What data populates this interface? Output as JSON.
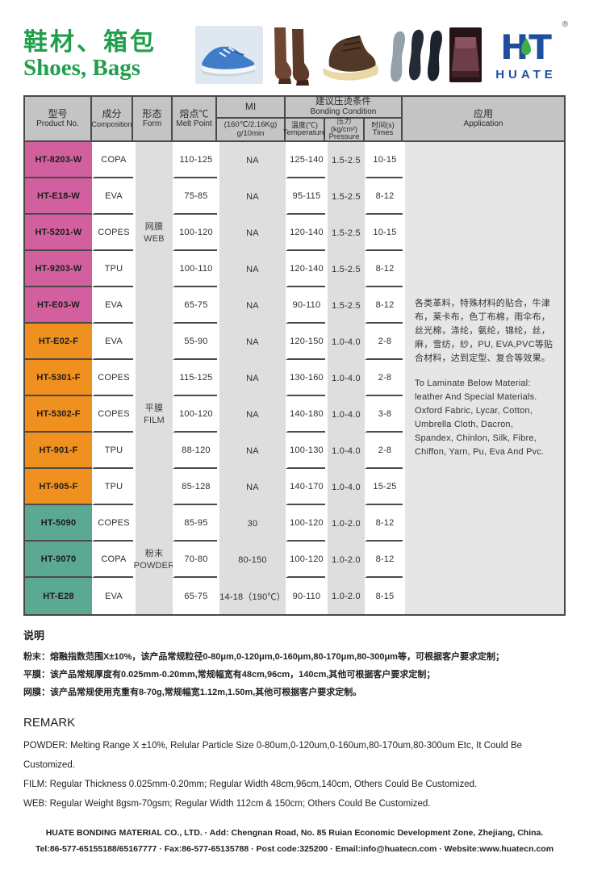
{
  "header": {
    "title_cn": "鞋材、箱包",
    "title_en": "Shoes, Bags",
    "photos": [
      "sneaker-photo",
      "tall-boots-photo",
      "ankle-boot-photo",
      "insoles-photo",
      "bag-photo"
    ],
    "logo": {
      "monogram": "HT",
      "registered": "®",
      "name": "HUATE"
    }
  },
  "colors": {
    "title_green": "#1f9f4a",
    "logo_blue": "#1d4f9e",
    "group_pink": "#d2609e",
    "group_orange": "#f0901e",
    "group_teal": "#5ba893",
    "header_gray": "#c4c4c4",
    "stripe_gray": "#dedede"
  },
  "table": {
    "header": {
      "product_cn": "型号",
      "product_en": "Product No.",
      "composition_cn": "成分",
      "composition_en": "Composition",
      "form_cn": "形态",
      "form_en": "Form",
      "melt_cn": "熔点℃",
      "melt_en": "Melt Point",
      "mi_title": "MI",
      "mi_sub1": "(160℃/2.16Kg)",
      "mi_sub2": "g/10min",
      "bonding_cn": "建议压烫条件",
      "bonding_en": "Bonding Condition",
      "temp_cn": "温度(℃)",
      "temp_en": "Temperature",
      "pressure_cn": "压力(kg/cm²)",
      "pressure_en": "Pressure",
      "times_cn": "时间(s)",
      "times_en": "Times",
      "app_cn": "应用",
      "app_en": "Application"
    },
    "groups": [
      {
        "form_cn": "网膜",
        "form_en": "WEB",
        "color": "#d2609e"
      },
      {
        "form_cn": "平膜",
        "form_en": "FILM",
        "color": "#f0901e"
      },
      {
        "form_cn": "粉末",
        "form_en": "POWDER",
        "color": "#5ba893"
      }
    ],
    "rows": [
      {
        "group": 0,
        "product": "HT-8203-W",
        "composition": "COPA",
        "melt": "110-125",
        "mi": "NA",
        "temp": "125-140",
        "pressure": "1.5-2.5",
        "times": "10-15"
      },
      {
        "group": 0,
        "product": "HT-E18-W",
        "composition": "EVA",
        "melt": "75-85",
        "mi": "NA",
        "temp": "95-115",
        "pressure": "1.5-2.5",
        "times": "8-12"
      },
      {
        "group": 0,
        "product": "HT-5201-W",
        "composition": "COPES",
        "melt": "100-120",
        "mi": "NA",
        "temp": "120-140",
        "pressure": "1.5-2.5",
        "times": "10-15"
      },
      {
        "group": 0,
        "product": "HT-9203-W",
        "composition": "TPU",
        "melt": "100-110",
        "mi": "NA",
        "temp": "120-140",
        "pressure": "1.5-2.5",
        "times": "8-12"
      },
      {
        "group": 0,
        "product": "HT-E03-W",
        "composition": "EVA",
        "melt": "65-75",
        "mi": "NA",
        "temp": "90-110",
        "pressure": "1.5-2.5",
        "times": "8-12"
      },
      {
        "group": 1,
        "product": "HT-E02-F",
        "composition": "EVA",
        "melt": "55-90",
        "mi": "NA",
        "temp": "120-150",
        "pressure": "1.0-4.0",
        "times": "2-8"
      },
      {
        "group": 1,
        "product": "HT-5301-F",
        "composition": "COPES",
        "melt": "115-125",
        "mi": "NA",
        "temp": "130-160",
        "pressure": "1.0-4.0",
        "times": "2-8"
      },
      {
        "group": 1,
        "product": "HT-5302-F",
        "composition": "COPES",
        "melt": "100-120",
        "mi": "NA",
        "temp": "140-180",
        "pressure": "1.0-4.0",
        "times": "3-8"
      },
      {
        "group": 1,
        "product": "HT-901-F",
        "composition": "TPU",
        "melt": "88-120",
        "mi": "NA",
        "temp": "100-130",
        "pressure": "1.0-4.0",
        "times": "2-8"
      },
      {
        "group": 1,
        "product": "HT-905-F",
        "composition": "TPU",
        "melt": "85-128",
        "mi": "NA",
        "temp": "140-170",
        "pressure": "1.0-4.0",
        "times": "15-25"
      },
      {
        "group": 2,
        "product": "HT-5090",
        "composition": "COPES",
        "melt": "85-95",
        "mi": "30",
        "temp": "100-120",
        "pressure": "1.0-2.0",
        "times": "8-12"
      },
      {
        "group": 2,
        "product": "HT-9070",
        "composition": "COPA",
        "melt": "70-80",
        "mi": "80-150",
        "temp": "100-120",
        "pressure": "1.0-2.0",
        "times": "8-12"
      },
      {
        "group": 2,
        "product": "HT-E28",
        "composition": "EVA",
        "melt": "65-75",
        "mi": "14-18（190℃）",
        "temp": "90-110",
        "pressure": "1.0-2.0",
        "times": "8-15"
      }
    ],
    "application_cn": "各类革料，特殊材料的贴合，牛津布，莱卡布，色丁布棉，雨伞布，丝光棉，涤纶，氨纶，锦纶，丝，麻，雪纺，纱，PU, EVA,PVC等贴合材料，达到定型、复合等效果。",
    "application_en": "To Laminate Below Material: leather And Special Materials. Oxford Fabric, Lycar, Cotton, Umbrella Cloth, Dacron, Spandex, Chinlon, Silk, Fibre, Chiffon, Yarn, Pu, Eva And Pvc."
  },
  "notes": {
    "heading": "说明",
    "lines": [
      "粉末：熔融指数范围X±10%，该产品常规粒径0-80μm,0-120μm,0-160μm,80-170μm,80-300μm等，可根据客户要求定制；",
      "平膜：该产品常规厚度有0.025mm-0.20mm,常规幅宽有48cm,96cm，140cm,其他可根据客户要求定制；",
      "网膜：该产品常规使用克重有8-70g,常规幅宽1.12m,1.50m,其他可根据客户要求定制。"
    ]
  },
  "remark": {
    "heading": "REMARK",
    "lines": [
      "POWDER: Melting Range X ±10%, Relular Particle Size 0-80um,0-120um,0-160um,80-170um,80-300um Etc, It Could Be Customized.",
      "FILM: Regular Thickness 0.025mm-0.20mm; Regular Width 48cm,96cm,140cm, Others Could Be Customized.",
      "WEB: Regular Weight 8gsm-70gsm; Regular Width 112cm & 150cm;  Others Could Be Customized."
    ]
  },
  "footer": {
    "line1": "HUATE BONDING MATERIAL CO., LTD. ·  Add: Chengnan Road, No. 85 Ruian Economic Development Zone, Zhejiang, China.",
    "line2": "Tel:86-577-65155188/65167777 · Fax:86-577-65135788 · Post code:325200 · Email:info@huatecn.com · Website:www.huatecn.com"
  }
}
